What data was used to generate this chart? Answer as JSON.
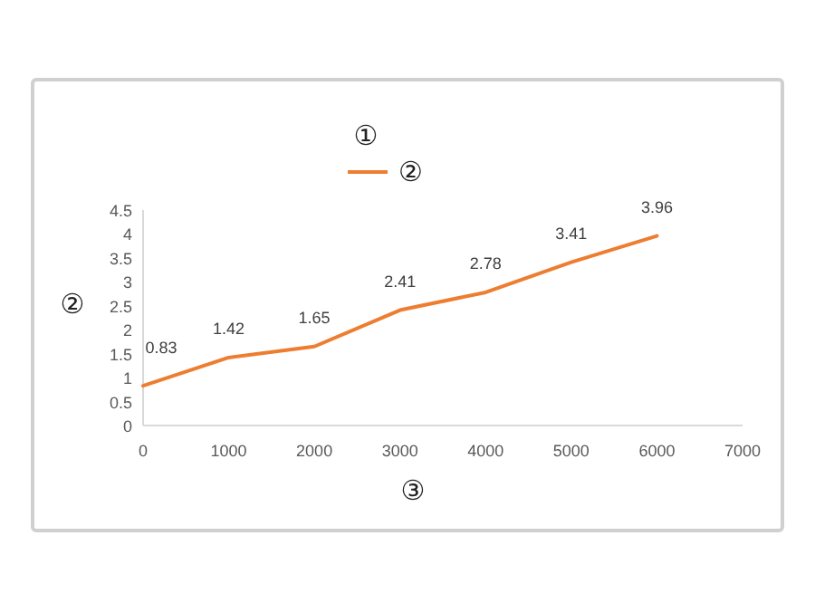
{
  "chart_data": {
    "type": "line",
    "title": "①",
    "xlabel": "③",
    "ylabel": "②",
    "x": [
      0,
      1000,
      2000,
      3000,
      4000,
      5000,
      6000
    ],
    "series": [
      {
        "name": "②",
        "color": "#ed7d31",
        "values": [
          0.83,
          1.42,
          1.65,
          2.41,
          2.78,
          3.41,
          3.96
        ]
      }
    ],
    "xlim": [
      0,
      7000
    ],
    "xticks": [
      0,
      1000,
      2000,
      3000,
      4000,
      5000,
      6000,
      7000
    ],
    "ylim": [
      0,
      4.5
    ],
    "yticks": [
      0,
      0.5,
      1,
      1.5,
      2,
      2.5,
      3,
      3.5,
      4,
      4.5
    ],
    "data_labels": true,
    "legend": "top",
    "grid": false,
    "marker": "none",
    "line_style": "solid"
  }
}
